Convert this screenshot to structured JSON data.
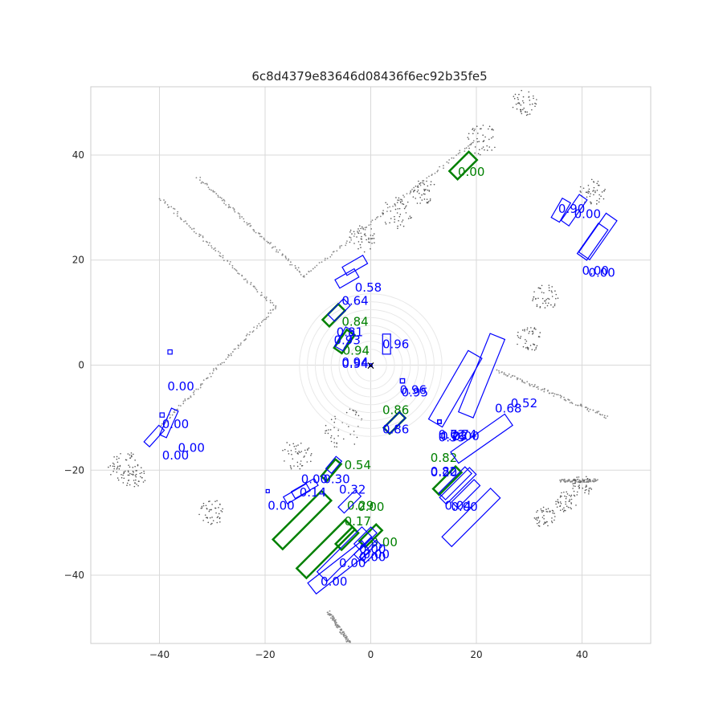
{
  "chart_data": {
    "type": "scatter",
    "title": "6c8d4379e83646d08436f6ec92b35fe5",
    "xlabel": "",
    "ylabel": "",
    "xlim": [
      -53,
      53
    ],
    "ylim": [
      -53,
      53
    ],
    "x_ticks": [
      -40,
      -20,
      0,
      20,
      40
    ],
    "y_ticks": [
      -40,
      -20,
      0,
      20,
      40
    ],
    "grid": true,
    "ego_marker": {
      "x": 0,
      "y": 0,
      "symbol": "×"
    },
    "colors": {
      "ground_truth": "#008000",
      "prediction": "#0000ff",
      "points": "#555555",
      "grid": "#d9d9d9"
    },
    "ground_truth_boxes": [
      {
        "cx": 17.5,
        "cy": 38,
        "w": 2.2,
        "l": 5.2,
        "angle": 45,
        "score": "0.00",
        "lx": 16.5,
        "ly": 36
      },
      {
        "cx": -7,
        "cy": 9.5,
        "w": 1.8,
        "l": 4.2,
        "angle": 45,
        "score": "0.84",
        "lx": -5.5,
        "ly": 7.5
      },
      {
        "cx": -5,
        "cy": 4.5,
        "w": 1.8,
        "l": 4.2,
        "angle": 55,
        "score": "0.94",
        "lx": -5.3,
        "ly": 2
      },
      {
        "cx": 4.5,
        "cy": -11,
        "w": 1.6,
        "l": 4.2,
        "angle": 45,
        "score": "0.86",
        "lx": 2.2,
        "ly": -9.3
      },
      {
        "cx": 14.5,
        "cy": -22,
        "w": 1.6,
        "l": 6,
        "angle": 45,
        "score": "0.82",
        "lx": 11.3,
        "ly": -18.4
      },
      {
        "cx": -7.5,
        "cy": -20,
        "w": 1.4,
        "l": 4.2,
        "angle": 50,
        "score": "0.54",
        "lx": -5,
        "ly": -19.8
      },
      {
        "cx": -13,
        "cy": -29.5,
        "w": 2.6,
        "l": 13,
        "angle": 45,
        "score": "0.29",
        "lx": -4.5,
        "ly": -27.5
      },
      {
        "cx": -8.5,
        "cy": -35,
        "w": 2.6,
        "l": 13,
        "angle": 45,
        "score": "0.00",
        "lx": -2.5,
        "ly": -27.8
      },
      {
        "cx": -4.5,
        "cy": -33,
        "w": 1.6,
        "l": 4.5,
        "angle": 45,
        "score": "0.17",
        "lx": -5,
        "ly": -30.5
      },
      {
        "cx": 0,
        "cy": -32.5,
        "w": 1.6,
        "l": 4.5,
        "angle": 45,
        "score": "0.00",
        "lx": 0,
        "ly": -34.5
      }
    ],
    "predicted_boxes": [
      {
        "cx": 36,
        "cy": 29.5,
        "w": 1.8,
        "l": 4.2,
        "angle": 60,
        "score": "0.90",
        "lx": 35.5,
        "ly": 29
      },
      {
        "cx": 38.5,
        "cy": 29.5,
        "w": 1.8,
        "l": 6,
        "angle": 55,
        "score": "0.00",
        "lx": 38.5,
        "ly": 28
      },
      {
        "cx": 43,
        "cy": 24.5,
        "w": 2.5,
        "l": 9,
        "angle": 55,
        "score": "0.00",
        "lx": 40,
        "ly": 17.2
      },
      {
        "cx": 42,
        "cy": 23.5,
        "w": 2.2,
        "l": 7,
        "angle": 55,
        "score": "0.00",
        "lx": 41.2,
        "ly": 16.8
      },
      {
        "cx": -3,
        "cy": 19,
        "w": 1.8,
        "l": 4.5,
        "angle": 30,
        "score": "0.58",
        "lx": -3,
        "ly": 14
      },
      {
        "cx": -4.5,
        "cy": 16.5,
        "w": 1.8,
        "l": 4.2,
        "angle": 30,
        "score": "0.64",
        "lx": -5.5,
        "ly": 11.5
      },
      {
        "cx": -6,
        "cy": 10.5,
        "w": 1.8,
        "l": 4.2,
        "angle": 45,
        "score": "0.81",
        "lx": -6.5,
        "ly": 5.5
      },
      {
        "cx": -5,
        "cy": 5,
        "w": 1.8,
        "l": 4.2,
        "angle": 60,
        "score": "0.93",
        "lx": -7,
        "ly": 4
      },
      {
        "cx": 3,
        "cy": 4,
        "w": 1.5,
        "l": 3.8,
        "angle": 90,
        "score": "0.96",
        "lx": 2.2,
        "ly": 3.2
      },
      {
        "cx": 0,
        "cy": 0,
        "w": 0.5,
        "l": 0.5,
        "angle": 0,
        "score": "0.94",
        "lx": -5.5,
        "ly": -0.5
      },
      {
        "cx": 0,
        "cy": 0,
        "w": 0.5,
        "l": 0.5,
        "angle": 0,
        "score": "0.94",
        "lx": -5.5,
        "ly": -0.2
      },
      {
        "cx": 6,
        "cy": -3,
        "w": 0.8,
        "l": 0.8,
        "angle": 0,
        "score": "0.96",
        "lx": 5.5,
        "ly": -5.5
      },
      {
        "cx": 6,
        "cy": -3,
        "w": 0.8,
        "l": 0.8,
        "angle": 0,
        "score": "0.95",
        "lx": 5.8,
        "ly": -6
      },
      {
        "cx": 16,
        "cy": -4.5,
        "w": 3,
        "l": 15,
        "angle": 60,
        "score": "0.68",
        "lx": 23.5,
        "ly": -9
      },
      {
        "cx": 21,
        "cy": -2,
        "w": 3,
        "l": 16,
        "angle": 68,
        "score": "0.52",
        "lx": 26.5,
        "ly": -8
      },
      {
        "cx": 4.5,
        "cy": -11,
        "w": 1.6,
        "l": 4.2,
        "angle": 45,
        "score": "0.86",
        "lx": 2.2,
        "ly": -13
      },
      {
        "cx": 13,
        "cy": -10.8,
        "w": 0.7,
        "l": 0.7,
        "angle": 0,
        "score": "0.72",
        "lx": 12.8,
        "ly": -14
      },
      {
        "cx": 13,
        "cy": -10.8,
        "w": 0.7,
        "l": 0.7,
        "angle": 0,
        "score": "0.74",
        "lx": 15,
        "ly": -14
      },
      {
        "cx": 13,
        "cy": -10.8,
        "w": 0.7,
        "l": 0.7,
        "angle": 0,
        "score": "0.55",
        "lx": 12.8,
        "ly": -14.5
      },
      {
        "cx": 13,
        "cy": -10.8,
        "w": 0.7,
        "l": 0.7,
        "angle": 0,
        "score": "0.23",
        "lx": 13.2,
        "ly": -14.3
      },
      {
        "cx": 21,
        "cy": -14,
        "w": 2.6,
        "l": 12.5,
        "angle": 35,
        "score": "0.00",
        "lx": 15.5,
        "ly": -14.3
      },
      {
        "cx": 16.5,
        "cy": -23,
        "w": 1.8,
        "l": 8,
        "angle": 45,
        "score": "0.82",
        "lx": 11.3,
        "ly": -21
      },
      {
        "cx": 16,
        "cy": -22.5,
        "w": 1.8,
        "l": 7,
        "angle": 45,
        "score": "0.20",
        "lx": 11.3,
        "ly": -21.2
      },
      {
        "cx": 19,
        "cy": -29,
        "w": 2.6,
        "l": 13,
        "angle": 45,
        "score": "0.04",
        "lx": 14,
        "ly": -27.5
      },
      {
        "cx": 18,
        "cy": -24.5,
        "w": 1.6,
        "l": 6,
        "angle": 45,
        "score": "0.00",
        "lx": 15.2,
        "ly": -27.8
      },
      {
        "cx": -7,
        "cy": -19,
        "w": 1.4,
        "l": 3,
        "angle": 50,
        "score": "0.30",
        "lx": -9,
        "ly": -22.5
      },
      {
        "cx": -12.5,
        "cy": -23.5,
        "w": 1.5,
        "l": 5,
        "angle": 30,
        "score": "0.14",
        "lx": -13.5,
        "ly": -25
      },
      {
        "cx": -14,
        "cy": -24.5,
        "w": 1.5,
        "l": 5,
        "angle": 30,
        "score": "0.00",
        "lx": -19.5,
        "ly": -27.5
      },
      {
        "cx": -19.5,
        "cy": -24,
        "w": 0.6,
        "l": 0.6,
        "angle": 0,
        "score": "0.00",
        "lx": -13.2,
        "ly": -22.5
      },
      {
        "cx": -4,
        "cy": -26,
        "w": 1.6,
        "l": 4.5,
        "angle": 45,
        "score": "0.32",
        "lx": -6,
        "ly": -24.5
      },
      {
        "cx": -5,
        "cy": -36,
        "w": 2.6,
        "l": 12,
        "angle": 45,
        "score": "0.00",
        "lx": -6,
        "ly": -38.5
      },
      {
        "cx": -6,
        "cy": -38.5,
        "w": 2.6,
        "l": 13,
        "angle": 38,
        "score": "0.00",
        "lx": -9.5,
        "ly": -42
      },
      {
        "cx": -1,
        "cy": -33,
        "w": 1.6,
        "l": 4.5,
        "angle": 45,
        "score": "0.00",
        "lx": -2.2,
        "ly": -35.8
      },
      {
        "cx": -1,
        "cy": -35,
        "w": 1.6,
        "l": 4.5,
        "angle": 45,
        "score": "0.00",
        "lx": -1.5,
        "ly": -36.8
      },
      {
        "cx": 0,
        "cy": -35.5,
        "w": 1.6,
        "l": 4.5,
        "angle": 45,
        "score": "0.00",
        "lx": -2.2,
        "ly": -37.3
      },
      {
        "cx": -38,
        "cy": 2.5,
        "w": 0.8,
        "l": 0.8,
        "angle": 0,
        "score": "0.00",
        "lx": -38.5,
        "ly": -4.8
      },
      {
        "cx": -38.2,
        "cy": -11,
        "w": 1.4,
        "l": 5.5,
        "angle": 66,
        "score": "0.00",
        "lx": -39.5,
        "ly": -12
      },
      {
        "cx": -41,
        "cy": -13.5,
        "w": 1.4,
        "l": 4.2,
        "angle": 48,
        "score": "0.00",
        "lx": -36.5,
        "ly": -16.5
      },
      {
        "cx": -39.5,
        "cy": -9.5,
        "w": 0.8,
        "l": 0.8,
        "angle": 0,
        "score": "0.00",
        "lx": -39.5,
        "ly": -18
      }
    ],
    "lidar_segments": [
      {
        "x1": -18,
        "y1": 11,
        "x2": -40,
        "y2": -12
      },
      {
        "x1": -18,
        "y1": 11,
        "x2": -40,
        "y2": 32
      },
      {
        "x1": -12.5,
        "y1": 17,
        "x2": 20,
        "y2": 43
      },
      {
        "x1": -12.5,
        "y1": 17,
        "x2": -33,
        "y2": 36
      },
      {
        "x1": 24,
        "y1": -1,
        "x2": 45,
        "y2": -10
      },
      {
        "x1": -8,
        "y1": -47,
        "x2": -4,
        "y2": -53
      },
      {
        "x1": 36,
        "y1": -22,
        "x2": 43,
        "y2": -22
      }
    ],
    "lidar_clusters": [
      {
        "x": -47,
        "y": -19,
        "r": 3
      },
      {
        "x": -45,
        "y": -21,
        "r": 2.5
      },
      {
        "x": 21,
        "y": 43,
        "r": 3
      },
      {
        "x": 5,
        "y": 29,
        "r": 3
      },
      {
        "x": 10,
        "y": 33,
        "r": 2.5
      },
      {
        "x": -2,
        "y": 24,
        "r": 3
      },
      {
        "x": 29,
        "y": 50,
        "r": 2.5
      },
      {
        "x": 42,
        "y": 33,
        "r": 2.5
      },
      {
        "x": 33,
        "y": -29,
        "r": 2
      },
      {
        "x": 37,
        "y": -26,
        "r": 2
      },
      {
        "x": 40,
        "y": -23,
        "r": 2
      },
      {
        "x": -5,
        "y": -12,
        "r": 4
      },
      {
        "x": -14,
        "y": -17,
        "r": 3
      },
      {
        "x": -30,
        "y": -28,
        "r": 2.5
      },
      {
        "x": 30,
        "y": 5,
        "r": 2.5
      },
      {
        "x": 33,
        "y": 13,
        "r": 2.5
      }
    ]
  }
}
